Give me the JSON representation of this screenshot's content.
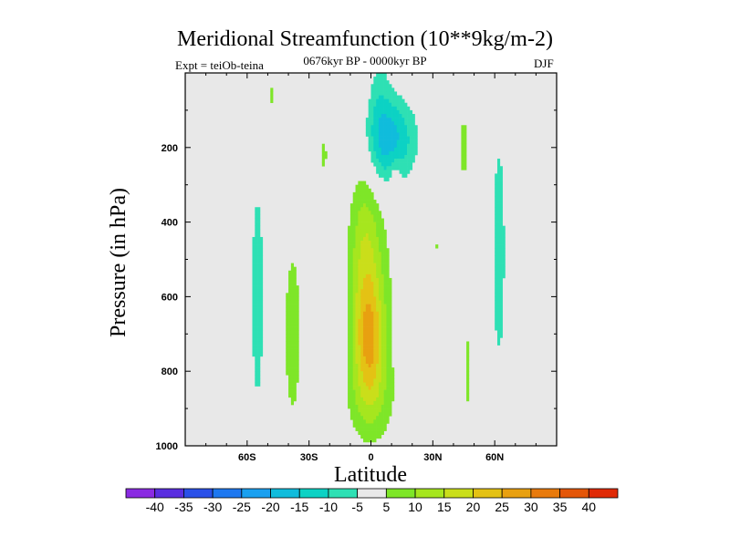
{
  "chart_data": {
    "type": "heatmap",
    "title": "Meridional Streamfunction (10**9kg/m-2)",
    "subtitle": "0676kyr BP - 0000kyr BP",
    "left_label": "Expt = teiOb-teina",
    "right_label": "DJF",
    "xlabel": "Latitude",
    "ylabel": "Pressure (in hPa)",
    "xlim": [
      -90,
      90
    ],
    "ylim": [
      1000,
      0
    ],
    "x_ticks": [
      {
        "value": -60,
        "label": "60S"
      },
      {
        "value": -30,
        "label": "30S"
      },
      {
        "value": 0,
        "label": "0"
      },
      {
        "value": 30,
        "label": "30N"
      },
      {
        "value": 60,
        "label": "60N"
      }
    ],
    "y_ticks": [
      {
        "value": 200,
        "label": "200"
      },
      {
        "value": 400,
        "label": "400"
      },
      {
        "value": 600,
        "label": "600"
      },
      {
        "value": 800,
        "label": "800"
      },
      {
        "value": 1000,
        "label": "1000"
      }
    ],
    "contour_levels": [
      -40,
      -35,
      -30,
      -25,
      -20,
      -15,
      -10,
      -5,
      5,
      10,
      15,
      20,
      25,
      30,
      35,
      40
    ],
    "colorbar_colors": [
      "#8a2be2",
      "#5a2ee0",
      "#2a50e8",
      "#1e78f0",
      "#1aa0f0",
      "#10bcdc",
      "#0cd2c4",
      "#2ee0b4",
      "#e8e8e8",
      "#7ee628",
      "#a6e61e",
      "#cade1a",
      "#e4c214",
      "#e8a010",
      "#e87a0c",
      "#e45608",
      "#e02a06"
    ],
    "background_color": "#e8e8e8",
    "features": [
      {
        "name": "equatorial positive cell",
        "lat_center": 0,
        "p_top": 280,
        "p_bottom": 980,
        "peak_value": 27,
        "peak_lat": -1,
        "peak_p": 720
      },
      {
        "name": "upper negative cell",
        "lat_center": 5,
        "p_top": 90,
        "p_bottom": 280,
        "peak_value": -17,
        "peak_lat": 10,
        "peak_p": 180
      },
      {
        "name": "southern positive band",
        "lat_center": -38,
        "p_top": 460,
        "p_bottom": 950,
        "peak_value": 7
      },
      {
        "name": "southern negative band",
        "lat_center": -55,
        "p_top": 290,
        "p_bottom": 900,
        "peak_value": -7
      },
      {
        "name": "northern negative band",
        "lat_center": 62,
        "p_top": 190,
        "p_bottom": 810,
        "peak_value": -7
      }
    ]
  }
}
